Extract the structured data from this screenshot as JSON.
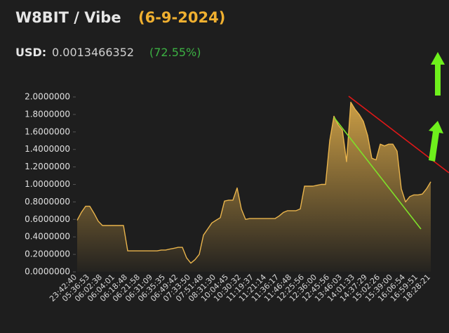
{
  "chart_data": {
    "type": "area",
    "title": "W8BIT / Vibe",
    "subtitle": "(6-9-2024)",
    "price_label": "USD:",
    "price": "0.0013466352",
    "change": "(72.55%)",
    "color": "#e9b44c",
    "ylim": [
      0,
      2
    ],
    "yticks": [
      {
        "value": 0,
        "label": "0.0000000"
      },
      {
        "value": 0.2,
        "label": "0.2000000"
      },
      {
        "value": 0.4,
        "label": "0.4000000"
      },
      {
        "value": 0.6,
        "label": "0.6000000"
      },
      {
        "value": 0.8,
        "label": "0.8000000"
      },
      {
        "value": 1,
        "label": "1.0000000"
      },
      {
        "value": 1.2,
        "label": "1.2000000"
      },
      {
        "value": 1.4,
        "label": "1.4000000"
      },
      {
        "value": 1.6,
        "label": "1.6000000"
      },
      {
        "value": 1.8,
        "label": "1.8000000"
      },
      {
        "value": 2,
        "label": "2.0000000"
      }
    ],
    "categories": [
      "23:42:40",
      null,
      null,
      "05:36:53",
      null,
      null,
      "06:02:38",
      null,
      null,
      "06:04:01",
      null,
      null,
      "06:18:48",
      null,
      null,
      "06:21:58",
      null,
      null,
      "06:31:09",
      null,
      null,
      "06:35:35",
      null,
      null,
      "06:49:42",
      null,
      null,
      "07:33:50",
      null,
      null,
      "07:51:48",
      null,
      null,
      "08:31:30",
      null,
      null,
      "10:04:45",
      null,
      null,
      "10:30:32",
      null,
      null,
      "11:19:37",
      null,
      null,
      "11:21:14",
      null,
      null,
      "11:36:17",
      null,
      null,
      "11:46:48",
      null,
      null,
      "12:25:56",
      null,
      null,
      "12:36:00",
      null,
      null,
      "12:45:56",
      null,
      null,
      "13:46:03",
      null,
      null,
      "14:01:33",
      null,
      null,
      "14:37:29",
      null,
      null,
      "15:02:26",
      null,
      null,
      "15:39:00",
      null,
      null,
      "16:06:54",
      null,
      null,
      "16:59:51",
      null,
      null,
      "18:28:21"
    ],
    "values": [
      0.59,
      0.68,
      0.75,
      0.75,
      0.67,
      0.58,
      0.53,
      0.53,
      0.53,
      0.53,
      0.53,
      0.53,
      0.24,
      0.24,
      0.24,
      0.24,
      0.24,
      0.24,
      0.24,
      0.24,
      0.25,
      0.25,
      0.26,
      0.27,
      0.28,
      0.28,
      0.16,
      0.1,
      0.14,
      0.2,
      0.42,
      0.49,
      0.56,
      0.59,
      0.62,
      0.81,
      0.82,
      0.82,
      0.96,
      0.72,
      0.6,
      0.61,
      0.61,
      0.61,
      0.61,
      0.61,
      0.61,
      0.61,
      0.64,
      0.68,
      0.7,
      0.7,
      0.7,
      0.72,
      0.98,
      0.98,
      0.98,
      0.99,
      1.0,
      1.0,
      1.5,
      1.78,
      1.68,
      1.62,
      1.26,
      1.94,
      1.86,
      1.8,
      1.72,
      1.56,
      1.3,
      1.28,
      1.46,
      1.44,
      1.46,
      1.46,
      1.38,
      0.95,
      0.8,
      0.86,
      0.88,
      0.88,
      0.89,
      0.95,
      1.03
    ]
  }
}
